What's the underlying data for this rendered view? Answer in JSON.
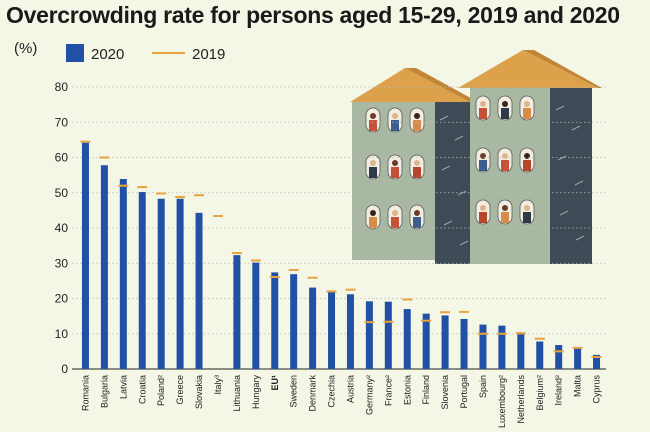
{
  "chart_data": {
    "type": "bar",
    "title": "Overcrowding rate for persons aged 15-29, 2019 and 2020",
    "ylabel": "(%)",
    "ylim": [
      0,
      80
    ],
    "yticks": [
      0,
      10,
      20,
      30,
      40,
      50,
      60,
      70,
      80
    ],
    "categories": [
      "Romania",
      "Bulgaria",
      "Latvia",
      "Croatia",
      "Poland²",
      "Greece",
      "Slovakia",
      "Italy³",
      "Lithuania",
      "Hungary",
      "EU¹",
      "Sweden",
      "Denmark",
      "Czechia",
      "Austria",
      "Germany²",
      "France²",
      "Estonia",
      "Finland",
      "Slovenia",
      "Portugal",
      "Spain",
      "Luxembourg²",
      "Netherlands",
      "Belgium²",
      "Ireland²",
      "Malta",
      "Cyprus"
    ],
    "bold_categories": [
      "EU¹"
    ],
    "series": [
      {
        "name": "2020",
        "kind": "bar",
        "color": "#2151a6",
        "values": [
          64.2,
          57.8,
          53.9,
          50.2,
          48.3,
          48.3,
          44.3,
          null,
          32.3,
          30.2,
          27.4,
          26.9,
          23.1,
          21.9,
          21.2,
          19.2,
          19.1,
          17.0,
          15.7,
          15.2,
          14.2,
          12.6,
          12.3,
          10.4,
          7.8,
          6.8,
          5.8,
          4.0
        ]
      },
      {
        "name": "2019",
        "kind": "marker",
        "color": "#e8a33c",
        "values": [
          64.5,
          60.0,
          52.0,
          51.6,
          49.8,
          48.8,
          49.3,
          43.4,
          32.9,
          30.8,
          26.1,
          28.1,
          25.9,
          22.0,
          22.5,
          13.3,
          13.4,
          19.7,
          13.7,
          16.1,
          16.2,
          10.0,
          10.0,
          10.1,
          8.6,
          5.0,
          6.0,
          3.4
        ]
      }
    ]
  },
  "legend": {
    "item_2020": "2020",
    "item_2019": "2019"
  }
}
